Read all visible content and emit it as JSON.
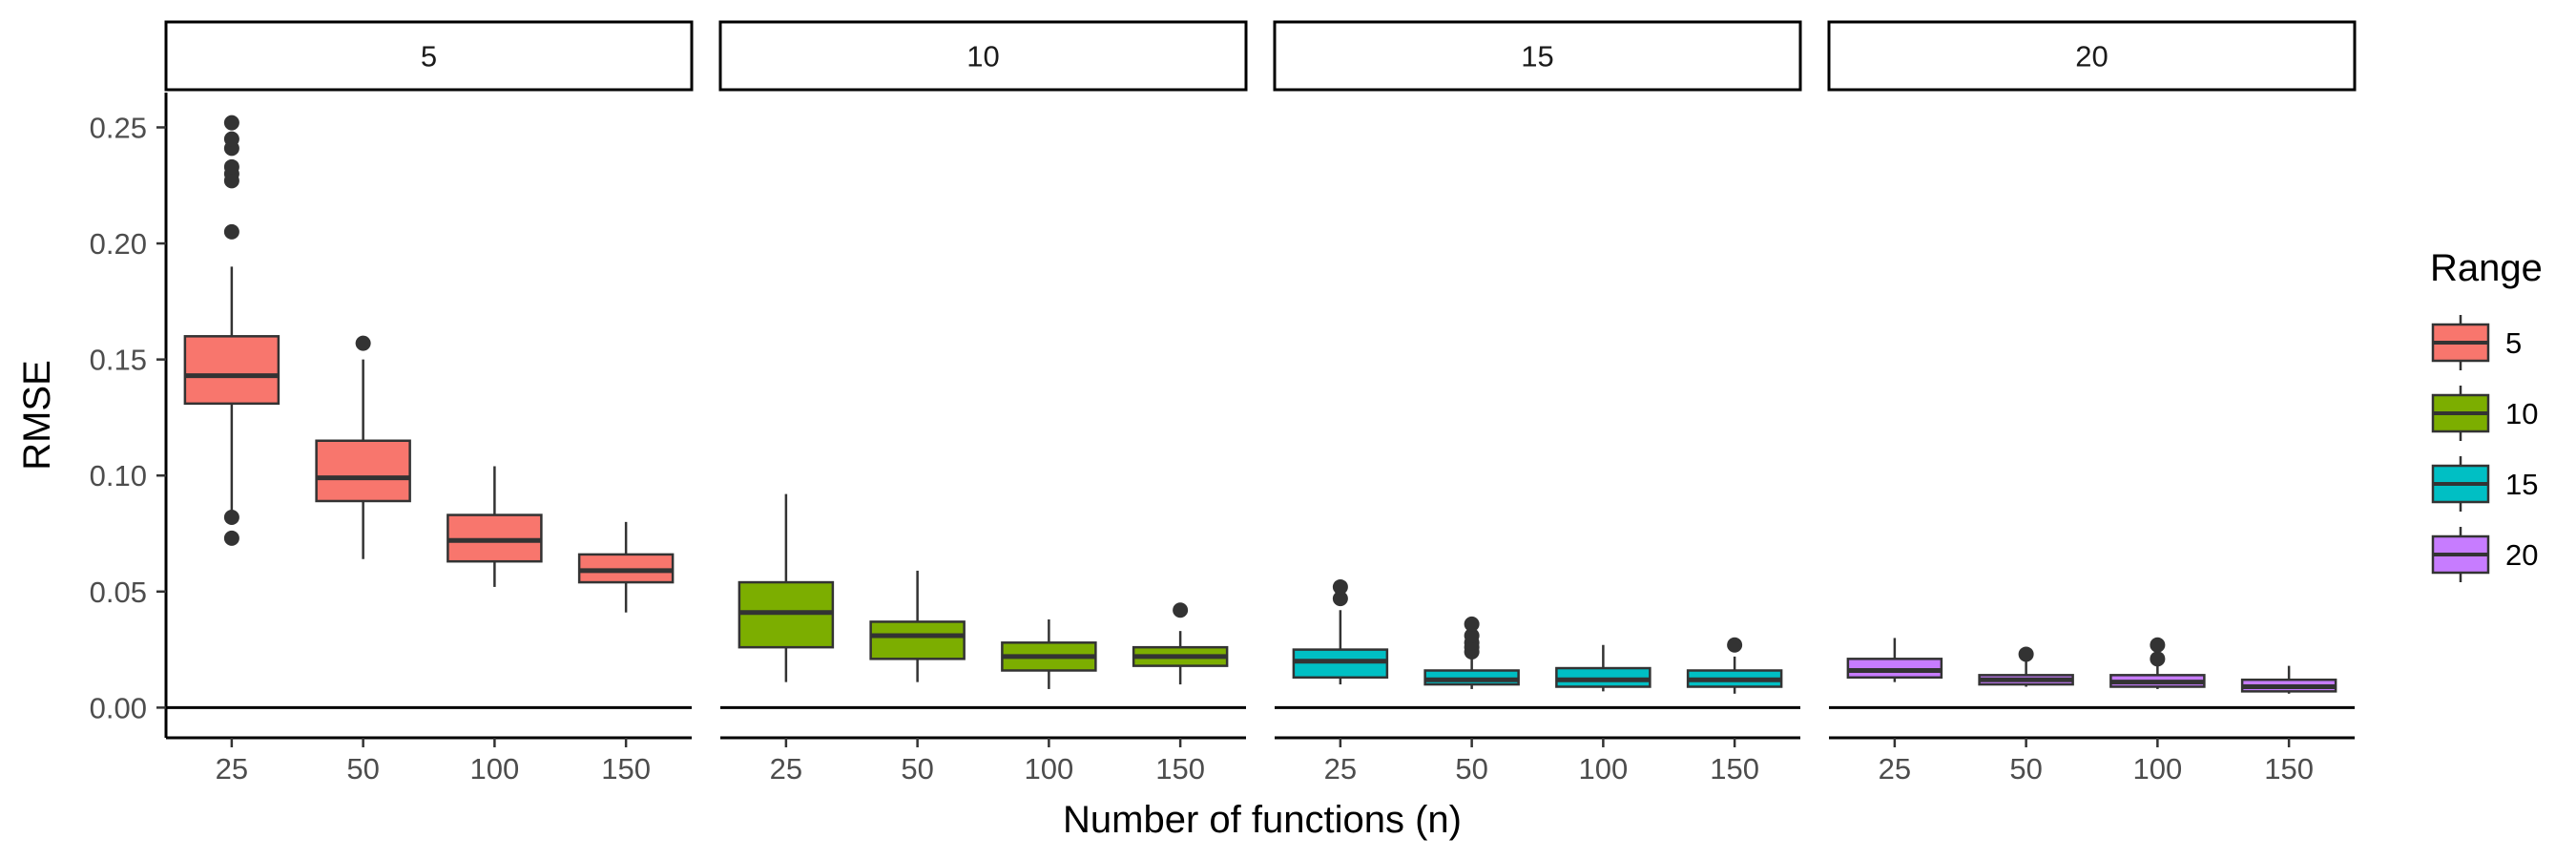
{
  "chart_data": {
    "type": "box",
    "xlabel": "Number of functions (n)",
    "ylabel": "RMSE",
    "ylim": [
      -0.013,
      0.265
    ],
    "yticks": [
      "0.00",
      "0.05",
      "0.10",
      "0.15",
      "0.20",
      "0.25"
    ],
    "ytick_values": [
      0,
      0.05,
      0.1,
      0.15,
      0.2,
      0.25
    ],
    "categories": [
      "25",
      "50",
      "100",
      "150"
    ],
    "legend": {
      "title": "Range",
      "position": "right",
      "items": [
        {
          "label": "5",
          "color": "#F8766D"
        },
        {
          "label": "10",
          "color": "#7CAE00"
        },
        {
          "label": "15",
          "color": "#00BFC4"
        },
        {
          "label": "20",
          "color": "#C77CFF"
        }
      ]
    },
    "facets": [
      {
        "label": "5",
        "color": "#F8766D",
        "boxes": [
          {
            "x": "25",
            "min": 0.082,
            "q1": 0.131,
            "median": 0.143,
            "q3": 0.16,
            "max": 0.19,
            "outliers": [
              0.073,
              0.082,
              0.205,
              0.227,
              0.23,
              0.233,
              0.241,
              0.245,
              0.252
            ]
          },
          {
            "x": "50",
            "min": 0.064,
            "q1": 0.089,
            "median": 0.099,
            "q3": 0.115,
            "max": 0.15,
            "outliers": [
              0.157
            ]
          },
          {
            "x": "100",
            "min": 0.052,
            "q1": 0.063,
            "median": 0.072,
            "q3": 0.083,
            "max": 0.104,
            "outliers": []
          },
          {
            "x": "150",
            "min": 0.041,
            "q1": 0.054,
            "median": 0.059,
            "q3": 0.066,
            "max": 0.08,
            "outliers": []
          }
        ]
      },
      {
        "label": "10",
        "color": "#7CAE00",
        "boxes": [
          {
            "x": "25",
            "min": 0.011,
            "q1": 0.026,
            "median": 0.041,
            "q3": 0.054,
            "max": 0.092,
            "outliers": []
          },
          {
            "x": "50",
            "min": 0.011,
            "q1": 0.021,
            "median": 0.031,
            "q3": 0.037,
            "max": 0.059,
            "outliers": []
          },
          {
            "x": "100",
            "min": 0.008,
            "q1": 0.016,
            "median": 0.022,
            "q3": 0.028,
            "max": 0.038,
            "outliers": []
          },
          {
            "x": "150",
            "min": 0.01,
            "q1": 0.018,
            "median": 0.022,
            "q3": 0.026,
            "max": 0.033,
            "outliers": [
              0.042
            ]
          }
        ]
      },
      {
        "label": "15",
        "color": "#00BFC4",
        "boxes": [
          {
            "x": "25",
            "min": 0.01,
            "q1": 0.013,
            "median": 0.02,
            "q3": 0.025,
            "max": 0.042,
            "outliers": [
              0.047,
              0.052
            ]
          },
          {
            "x": "50",
            "min": 0.008,
            "q1": 0.01,
            "median": 0.012,
            "q3": 0.016,
            "max": 0.022,
            "outliers": [
              0.024,
              0.026,
              0.028,
              0.031,
              0.036
            ]
          },
          {
            "x": "100",
            "min": 0.007,
            "q1": 0.009,
            "median": 0.012,
            "q3": 0.017,
            "max": 0.027,
            "outliers": []
          },
          {
            "x": "150",
            "min": 0.006,
            "q1": 0.009,
            "median": 0.012,
            "q3": 0.016,
            "max": 0.022,
            "outliers": [
              0.027
            ]
          }
        ]
      },
      {
        "label": "20",
        "color": "#C77CFF",
        "boxes": [
          {
            "x": "25",
            "min": 0.011,
            "q1": 0.013,
            "median": 0.016,
            "q3": 0.021,
            "max": 0.03,
            "outliers": []
          },
          {
            "x": "50",
            "min": 0.009,
            "q1": 0.01,
            "median": 0.012,
            "q3": 0.014,
            "max": 0.02,
            "outliers": [
              0.023
            ]
          },
          {
            "x": "100",
            "min": 0.008,
            "q1": 0.009,
            "median": 0.011,
            "q3": 0.014,
            "max": 0.018,
            "outliers": [
              0.021,
              0.027
            ]
          },
          {
            "x": "150",
            "min": 0.006,
            "q1": 0.007,
            "median": 0.009,
            "q3": 0.012,
            "max": 0.018,
            "outliers": []
          }
        ]
      }
    ]
  }
}
